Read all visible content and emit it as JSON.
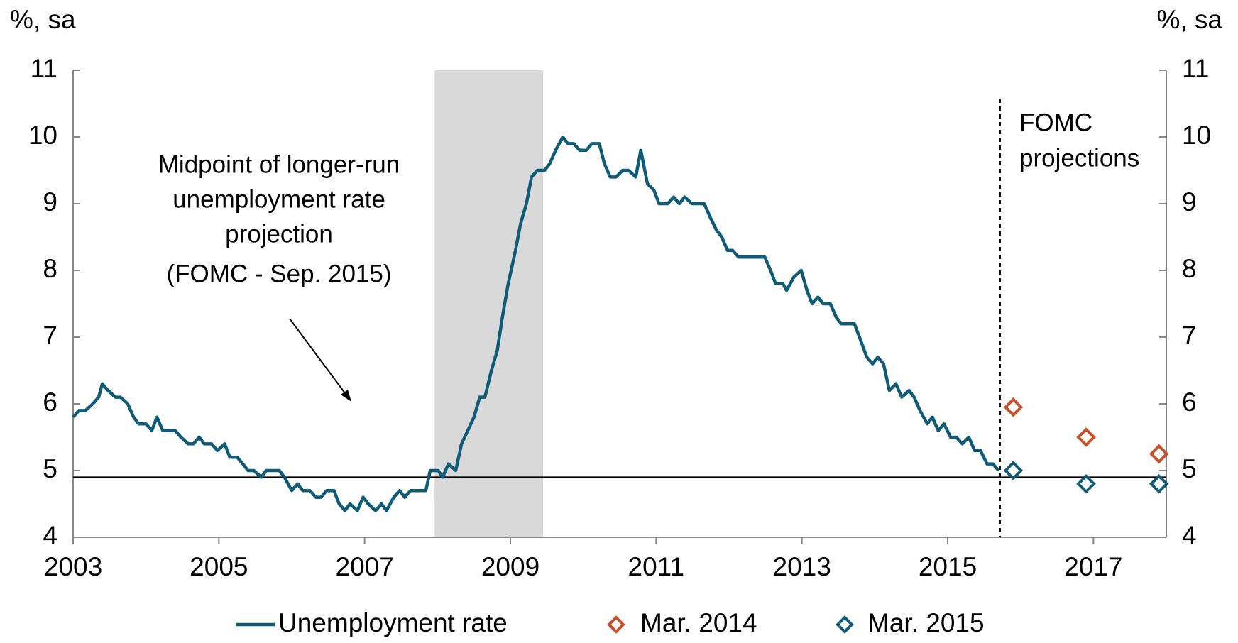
{
  "chart_data": {
    "type": "line",
    "y_label": "%, sa",
    "y2_label": "%, sa",
    "annotation": [
      "Midpoint of longer-run",
      "unemployment rate",
      "projection",
      "(FOMC - Sep. 2015)"
    ],
    "projection_label": [
      "FOMC",
      "projections"
    ],
    "xlim": [
      2003,
      2018
    ],
    "xticks": [
      2003,
      2005,
      2007,
      2009,
      2011,
      2013,
      2015,
      2017
    ],
    "ylim": [
      4,
      11
    ],
    "yticks": [
      4,
      5,
      6,
      7,
      8,
      9,
      10,
      11
    ],
    "y2lim": [
      4,
      11
    ],
    "y2ticks": [
      4,
      5,
      6,
      7,
      8,
      9,
      10,
      11
    ],
    "reference_line": 4.9,
    "projection_start": 2015.72,
    "shaded_span": [
      2007.96,
      2009.45
    ],
    "x": [
      2003,
      2003.08,
      2003.17,
      2003.27,
      2003.35,
      2003.4,
      2003.48,
      2003.58,
      2003.65,
      2003.75,
      2003.83,
      2003.9,
      2004,
      2004.08,
      2004.15,
      2004.23,
      2004.4,
      2004.48,
      2004.58,
      2004.65,
      2004.73,
      2004.8,
      2004.9,
      2004.98,
      2005.08,
      2005.15,
      2005.25,
      2005.33,
      2005.4,
      2005.48,
      2005.58,
      2005.65,
      2005.83,
      2005.9,
      2006,
      2006.08,
      2006.15,
      2006.25,
      2006.33,
      2006.4,
      2006.48,
      2006.58,
      2006.65,
      2006.73,
      2006.8,
      2006.9,
      2006.98,
      2007.05,
      2007.15,
      2007.23,
      2007.3,
      2007.4,
      2007.48,
      2007.55,
      2007.63,
      2007.84,
      2007.9,
      2008.01,
      2008.07,
      2008.15,
      2008.25,
      2008.33,
      2008.5,
      2008.58,
      2008.65,
      2008.74,
      2008.82,
      2008.89,
      2008.97,
      2009.07,
      2009.14,
      2009.22,
      2009.29,
      2009.37,
      2009.47,
      2009.54,
      2009.62,
      2009.72,
      2009.79,
      2009.87,
      2009.95,
      2010.04,
      2010.12,
      2010.22,
      2010.29,
      2010.37,
      2010.45,
      2010.54,
      2010.62,
      2010.72,
      2010.79,
      2010.88,
      2010.97,
      2011.04,
      2011.16,
      2011.24,
      2011.32,
      2011.39,
      2011.49,
      2011.66,
      2011.74,
      2011.83,
      2011.9,
      2011.98,
      2012.05,
      2012.13,
      2012.49,
      2012.57,
      2012.64,
      2012.74,
      2012.79,
      2012.89,
      2012.99,
      2013.07,
      2013.14,
      2013.22,
      2013.29,
      2013.39,
      2013.47,
      2013.54,
      2013.72,
      2013.79,
      2013.89,
      2013.97,
      2014.04,
      2014.12,
      2014.2,
      2014.29,
      2014.37,
      2014.47,
      2014.54,
      2014.62,
      2014.72,
      2014.79,
      2014.87,
      2014.95,
      2015.04,
      2015.12,
      2015.2,
      2015.29,
      2015.37,
      2015.45,
      2015.54,
      2015.62,
      2015.7
    ],
    "series": [
      {
        "name": "Unemployment rate",
        "color": "#0f5b78",
        "marker": "line",
        "values": [
          5.8,
          5.9,
          5.9,
          6.0,
          6.1,
          6.3,
          6.2,
          6.1,
          6.1,
          6.0,
          5.8,
          5.7,
          5.7,
          5.6,
          5.8,
          5.6,
          5.6,
          5.5,
          5.4,
          5.4,
          5.5,
          5.4,
          5.4,
          5.3,
          5.4,
          5.2,
          5.2,
          5.1,
          5.0,
          5.0,
          4.9,
          5.0,
          5.0,
          4.9,
          4.7,
          4.8,
          4.7,
          4.7,
          4.6,
          4.6,
          4.7,
          4.7,
          4.5,
          4.4,
          4.5,
          4.4,
          4.6,
          4.5,
          4.4,
          4.5,
          4.4,
          4.6,
          4.7,
          4.6,
          4.7,
          4.7,
          5.0,
          5.0,
          4.9,
          5.1,
          5.0,
          5.4,
          5.8,
          6.1,
          6.1,
          6.5,
          6.8,
          7.3,
          7.8,
          8.3,
          8.7,
          9.0,
          9.4,
          9.5,
          9.5,
          9.6,
          9.8,
          10.0,
          9.9,
          9.9,
          9.8,
          9.8,
          9.9,
          9.9,
          9.6,
          9.4,
          9.4,
          9.5,
          9.5,
          9.4,
          9.8,
          9.3,
          9.2,
          9.0,
          9.0,
          9.1,
          9.0,
          9.1,
          9.0,
          9.0,
          8.8,
          8.6,
          8.5,
          8.3,
          8.3,
          8.2,
          8.2,
          8.0,
          7.8,
          7.8,
          7.7,
          7.9,
          8.0,
          7.7,
          7.5,
          7.6,
          7.5,
          7.5,
          7.3,
          7.2,
          7.2,
          7.0,
          6.7,
          6.6,
          6.7,
          6.6,
          6.2,
          6.3,
          6.1,
          6.2,
          6.1,
          5.9,
          5.7,
          5.8,
          5.6,
          5.7,
          5.5,
          5.5,
          5.4,
          5.5,
          5.3,
          5.3,
          5.1,
          5.1,
          5.0
        ]
      },
      {
        "name": "Mar. 2014",
        "color": "#c8502a",
        "marker": "diamond",
        "x": [
          2015.9,
          2016.9,
          2017.9
        ],
        "values": [
          5.95,
          5.5,
          5.25
        ]
      },
      {
        "name": "Mar. 2015",
        "color": "#0f5b78",
        "marker": "diamond",
        "x": [
          2015.9,
          2016.9,
          2017.9
        ],
        "values": [
          5.0,
          4.8,
          4.8
        ]
      }
    ],
    "legend": "bottom"
  }
}
